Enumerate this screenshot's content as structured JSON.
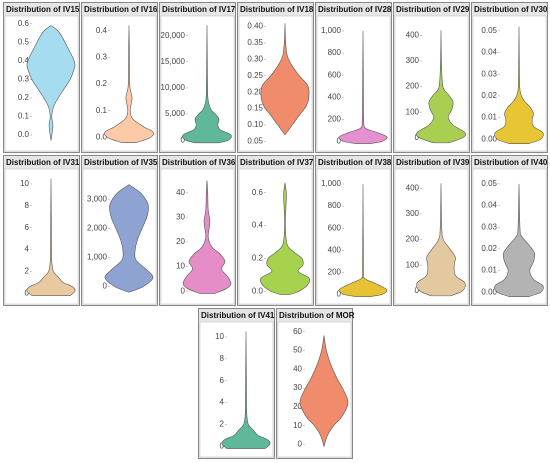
{
  "chart_data": [
    {
      "type": "violin",
      "title": "Distribution of IV15",
      "color": "#a6dcef",
      "ylim": [
        -0.07,
        0.62
      ],
      "yticks": [
        {
          "value": 0,
          "label": "0.0"
        },
        0.1,
        0.2,
        0.3,
        0.4,
        0.5,
        0.6
      ],
      "y": [
        -0.03,
        0.05,
        0.1,
        0.15,
        0.2,
        0.25,
        0.3,
        0.35,
        0.38,
        0.42,
        0.47,
        0.52,
        0.56,
        0.59
      ],
      "density": [
        0,
        0.08,
        0.03,
        0.1,
        0.3,
        0.55,
        0.8,
        0.95,
        1,
        0.9,
        0.7,
        0.5,
        0.3,
        0
      ]
    },
    {
      "type": "violin",
      "title": "Distribution of IV16",
      "color": "#fdc9a6",
      "ylim": [
        -0.04,
        0.44
      ],
      "yticks": [
        {
          "value": 0,
          "label": "0.0"
        },
        0.1,
        0.2,
        0.3,
        0.4
      ],
      "y": [
        -0.02,
        0,
        0.02,
        0.04,
        0.07,
        0.1,
        0.13,
        0.15,
        0.17,
        0.2,
        0.3,
        0.42
      ],
      "density": [
        0.3,
        0.9,
        1,
        0.6,
        0.15,
        0.05,
        0.1,
        0.13,
        0.08,
        0.03,
        0.02,
        0
      ]
    },
    {
      "type": "violin",
      "title": "Distribution of IV17",
      "color": "#5fb89a",
      "ylim": [
        -1500,
        23000
      ],
      "yticks": [
        0,
        {
          "value": 5000,
          "label": "5,000"
        },
        {
          "value": 10000,
          "label": "10,000"
        },
        {
          "value": 15000,
          "label": "15,000"
        },
        {
          "value": 20000,
          "label": "20,000"
        }
      ],
      "y": [
        -500,
        0,
        1000,
        2000,
        3000,
        4000,
        5000,
        6000,
        8000,
        12000,
        22000
      ],
      "density": [
        0.5,
        0.9,
        1,
        0.55,
        0.45,
        0.5,
        0.35,
        0.15,
        0.04,
        0.02,
        0
      ]
    },
    {
      "type": "violin",
      "title": "Distribution of IV18",
      "color": "#f08b6b",
      "ylim": [
        0.03,
        0.42
      ],
      "yticks": [
        0.05,
        {
          "value": 0.1,
          "label": "0.10"
        },
        0.15,
        {
          "value": 0.2,
          "label": "0.20"
        },
        0.25,
        {
          "value": 0.3,
          "label": "0.30"
        },
        0.35,
        {
          "value": 0.4,
          "label": "0.40"
        }
      ],
      "y": [
        0.07,
        0.1,
        0.13,
        0.16,
        0.19,
        0.22,
        0.25,
        0.28,
        0.31,
        0.35,
        0.41
      ],
      "density": [
        0,
        0.3,
        0.6,
        0.9,
        1,
        0.95,
        0.6,
        0.3,
        0.1,
        0.03,
        0
      ]
    },
    {
      "type": "violin",
      "title": "Distribution of IV28",
      "color": "#e590d1",
      "ylim": [
        -60,
        1100
      ],
      "yticks": [
        0,
        200,
        400,
        600,
        800,
        {
          "value": 1000,
          "label": "1,000"
        }
      ],
      "y": [
        -20,
        0,
        40,
        80,
        120,
        200,
        400,
        1000
      ],
      "density": [
        0.3,
        0.8,
        1,
        0.6,
        0.1,
        0.03,
        0.02,
        0
      ]
    },
    {
      "type": "violin",
      "title": "Distribution of IV29",
      "color": "#a8cf52",
      "ylim": [
        -40,
        460
      ],
      "yticks": [
        0,
        100,
        200,
        300,
        400
      ],
      "y": [
        -20,
        0,
        20,
        50,
        80,
        110,
        140,
        170,
        200,
        300,
        420
      ],
      "density": [
        0.3,
        0.9,
        1,
        0.5,
        0.3,
        0.45,
        0.5,
        0.3,
        0.08,
        0.02,
        0
      ]
    },
    {
      "type": "violin",
      "title": "Distribution of IV30",
      "color": "#e8c533",
      "ylim": [
        -0.004,
        0.055
      ],
      "yticks": [
        {
          "value": 0,
          "label": "0.00"
        },
        0.01,
        0.02,
        0.03,
        0.04,
        0.05
      ],
      "y": [
        -0.002,
        0,
        0.003,
        0.006,
        0.009,
        0.012,
        0.015,
        0.018,
        0.022,
        0.03,
        0.052
      ],
      "density": [
        0.4,
        0.9,
        1,
        0.6,
        0.55,
        0.6,
        0.45,
        0.2,
        0.05,
        0.02,
        0
      ]
    },
    {
      "type": "violin",
      "title": "Distribution of IV31",
      "color": "#e8c9a0",
      "ylim": [
        -0.7,
        11
      ],
      "yticks": [
        0,
        2,
        4,
        6,
        8,
        10
      ],
      "y": [
        -0.2,
        0.2,
        0.6,
        1,
        1.5,
        2,
        3,
        5,
        10.5
      ],
      "density": [
        0.8,
        1,
        0.9,
        0.5,
        0.3,
        0.1,
        0.03,
        0.02,
        0
      ]
    },
    {
      "type": "violin",
      "title": "Distribution of IV35",
      "color": "#8fa3d2",
      "ylim": [
        -500,
        3900
      ],
      "yticks": [
        0,
        {
          "value": 1000,
          "label": "1,000"
        },
        {
          "value": 2000,
          "label": "2,000"
        },
        {
          "value": 3000,
          "label": "3,000"
        }
      ],
      "y": [
        -200,
        0,
        300,
        600,
        900,
        1200,
        1600,
        2000,
        2400,
        2800,
        3200,
        3500
      ],
      "density": [
        0,
        0.6,
        1,
        0.7,
        0.3,
        0.25,
        0.35,
        0.55,
        0.75,
        0.8,
        0.5,
        0
      ]
    },
    {
      "type": "violin",
      "title": "Distribution of IV36",
      "color": "#e48dc6",
      "ylim": [
        -4,
        48
      ],
      "yticks": [
        0,
        10,
        20,
        30,
        40
      ],
      "y": [
        -1,
        1,
        3,
        6,
        9,
        12,
        15,
        18,
        22,
        26,
        29,
        33,
        40,
        45
      ],
      "density": [
        0.3,
        0.8,
        1,
        0.85,
        0.6,
        0.75,
        0.55,
        0.2,
        0.05,
        0.1,
        0.12,
        0.05,
        0.03,
        0
      ]
    },
    {
      "type": "violin",
      "title": "Distribution of IV37",
      "color": "#a6d24e",
      "ylim": [
        -0.06,
        0.72
      ],
      "yticks": [
        {
          "value": 0,
          "label": "0.0"
        },
        0.2,
        0.4,
        0.6
      ],
      "y": [
        -0.02,
        0,
        0.04,
        0.08,
        0.12,
        0.16,
        0.2,
        0.24,
        0.28,
        0.35,
        0.45,
        0.58,
        0.62,
        0.66
      ],
      "density": [
        0.2,
        0.6,
        0.95,
        1,
        0.55,
        0.75,
        0.7,
        0.35,
        0.1,
        0.03,
        0.02,
        0.06,
        0.04,
        0
      ]
    },
    {
      "type": "violin",
      "title": "Distribution of IV38",
      "color": "#e8c233",
      "ylim": [
        -60,
        1100
      ],
      "yticks": [
        0,
        200,
        400,
        600,
        800,
        {
          "value": 1000,
          "label": "1,000"
        }
      ],
      "y": [
        -20,
        0,
        40,
        80,
        110,
        150,
        250,
        1000
      ],
      "density": [
        0.3,
        0.8,
        1,
        0.7,
        0.4,
        0.05,
        0.02,
        0
      ]
    },
    {
      "type": "violin",
      "title": "Distribution of IV39",
      "color": "#e3c9a0",
      "ylim": [
        -40,
        460
      ],
      "yticks": [
        0,
        100,
        200,
        300,
        400
      ],
      "y": [
        -20,
        0,
        30,
        60,
        100,
        130,
        160,
        200,
        250,
        420
      ],
      "density": [
        0.4,
        0.9,
        1,
        0.6,
        0.55,
        0.6,
        0.4,
        0.1,
        0.03,
        0
      ]
    },
    {
      "type": "violin",
      "title": "Distribution of IV40",
      "color": "#b3b3b3",
      "ylim": [
        -0.004,
        0.055
      ],
      "yticks": [
        {
          "value": 0,
          "label": "0.00"
        },
        0.01,
        0.02,
        0.03,
        0.04,
        0.05
      ],
      "y": [
        -0.002,
        0,
        0.003,
        0.006,
        0.01,
        0.014,
        0.018,
        0.022,
        0.026,
        0.03,
        0.05
      ],
      "density": [
        0.4,
        0.9,
        1,
        0.6,
        0.45,
        0.6,
        0.65,
        0.4,
        0.1,
        0.04,
        0
      ]
    },
    {
      "type": "violin",
      "title": "Distribution of IV41",
      "color": "#5fb89a",
      "ylim": [
        -0.7,
        11
      ],
      "yticks": [
        0,
        2,
        4,
        6,
        8,
        10
      ],
      "y": [
        -0.2,
        0.2,
        0.6,
        1,
        1.5,
        2,
        3,
        5,
        10.5
      ],
      "density": [
        0.8,
        1,
        0.9,
        0.5,
        0.3,
        0.1,
        0.03,
        0.02,
        0
      ]
    },
    {
      "type": "violin",
      "title": "Distribution of MOR",
      "color": "#f08b6b",
      "ylim": [
        -5,
        63
      ],
      "yticks": [
        0,
        10,
        20,
        30,
        40,
        50,
        60
      ],
      "y": [
        -1,
        5,
        10,
        15,
        22,
        28,
        35,
        42,
        50,
        58
      ],
      "density": [
        0,
        0.15,
        0.4,
        0.75,
        1,
        0.85,
        0.55,
        0.3,
        0.1,
        0
      ]
    }
  ]
}
